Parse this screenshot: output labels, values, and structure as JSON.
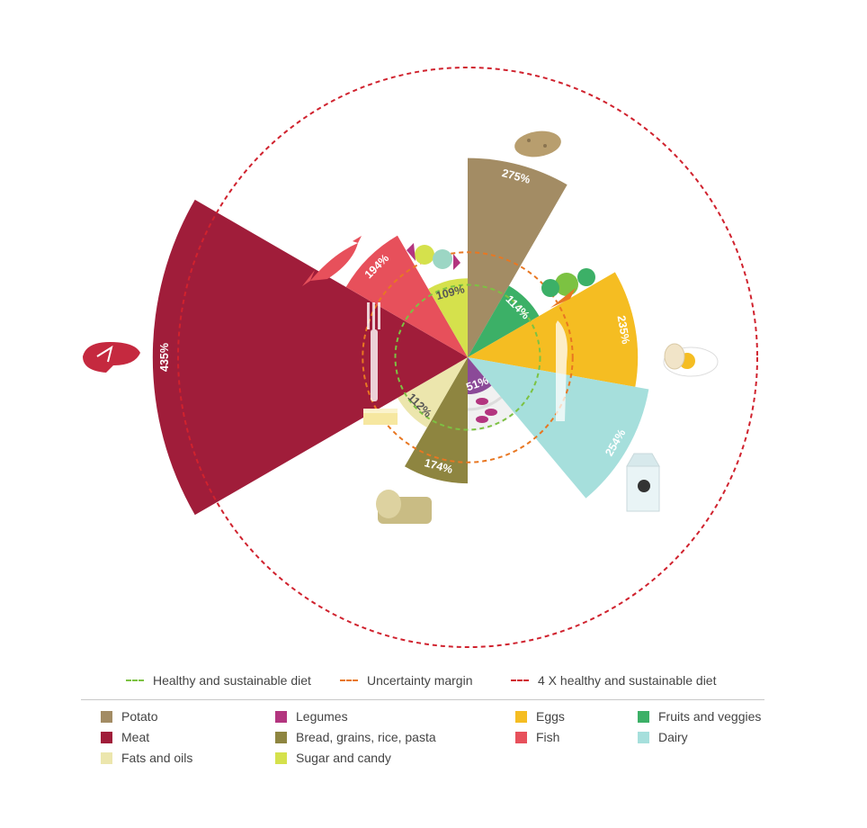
{
  "chart_data": {
    "type": "polar-area",
    "unit": "%",
    "reference_rings": [
      {
        "name": "Healthy and sustainable diet",
        "value": 100,
        "color": "#7cc242"
      },
      {
        "name": "Uncertainty margin",
        "value": 145,
        "color": "#e87722"
      },
      {
        "name": "4 X healthy and sustainable diet",
        "value": 400,
        "color": "#d0222e"
      }
    ],
    "slices": [
      {
        "name": "Potato",
        "value": 275,
        "label": "275%",
        "color": "#a38c64",
        "start_deg": 0,
        "end_deg": 30
      },
      {
        "name": "Fruits and veggies",
        "value": 114,
        "label": "114%",
        "color": "#3cb067",
        "start_deg": 30,
        "end_deg": 60
      },
      {
        "name": "Eggs",
        "value": 235,
        "label": "235%",
        "color": "#f5bd22",
        "start_deg": 60,
        "end_deg": 100
      },
      {
        "name": "Dairy",
        "value": 254,
        "label": "254%",
        "color": "#a6dfdc",
        "start_deg": 100,
        "end_deg": 140
      },
      {
        "name": "Legumes",
        "value": 51,
        "label": "51%",
        "color": "#8b4a98",
        "start_deg": 140,
        "end_deg": 180
      },
      {
        "name": "Bread, grains, rice, pasta",
        "value": 174,
        "label": "174%",
        "color": "#8e8540",
        "start_deg": 180,
        "end_deg": 210
      },
      {
        "name": "Fats and oils",
        "value": 112,
        "label": "112%",
        "color": "#ece6ad",
        "start_deg": 210,
        "end_deg": 240
      },
      {
        "name": "Meat",
        "value": 435,
        "label": "435%",
        "color": "#a01d3a",
        "start_deg": 240,
        "end_deg": 300
      },
      {
        "name": "Fish",
        "value": 194,
        "label": "194%",
        "color": "#e7505b",
        "start_deg": 300,
        "end_deg": 330
      },
      {
        "name": "Sugar and candy",
        "value": 109,
        "label": "109%",
        "color": "#d5e14c",
        "start_deg": 330,
        "end_deg": 360
      }
    ]
  },
  "legend_lines": [
    {
      "label": "Healthy and sustainable diet",
      "color": "#7cc242"
    },
    {
      "label": "Uncertainty margin",
      "color": "#e87722"
    },
    {
      "label": "4 X healthy and sustainable diet",
      "color": "#d0222e"
    }
  ],
  "legend_categories": [
    {
      "label": "Potato",
      "color": "#a38c64"
    },
    {
      "label": "Legumes",
      "color": "#b3357f"
    },
    {
      "label": "Eggs",
      "color": "#f5bd22"
    },
    {
      "label": "Fruits and veggies",
      "color": "#3cb067"
    },
    {
      "label": "Meat",
      "color": "#a01d3a"
    },
    {
      "label": "Bread, grains, rice, pasta",
      "color": "#8e8540"
    },
    {
      "label": "Fish",
      "color": "#e7505b"
    },
    {
      "label": "Dairy",
      "color": "#a6dfdc"
    },
    {
      "label": "Fats and oils",
      "color": "#ece6ad"
    },
    {
      "label": "Sugar and candy",
      "color": "#d5e14c"
    }
  ]
}
